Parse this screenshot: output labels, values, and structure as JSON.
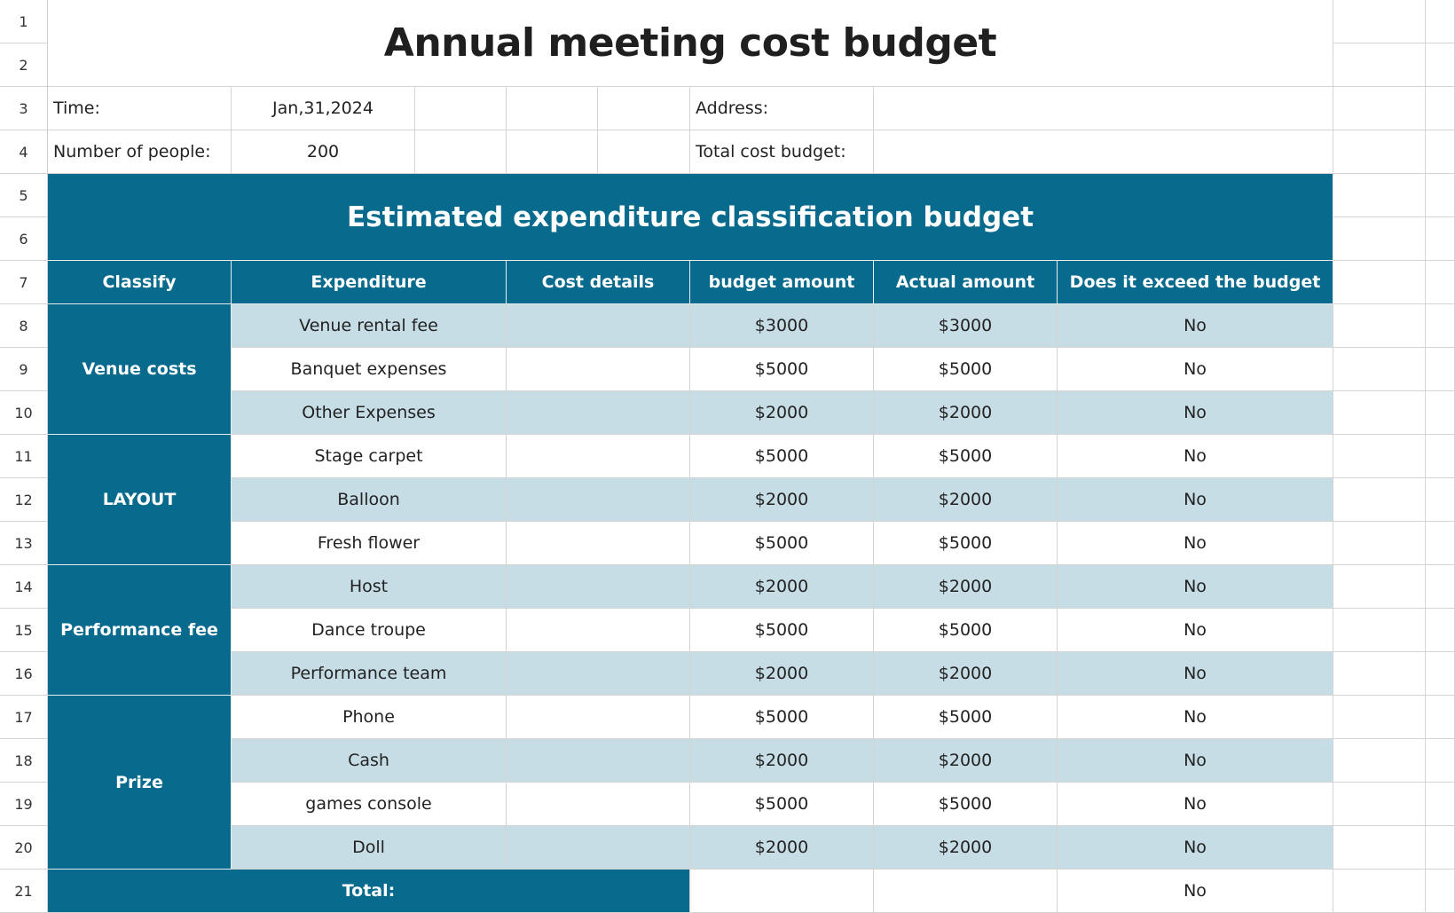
{
  "title": "Annual meeting cost budget",
  "row_numbers": [
    "1",
    "2",
    "3",
    "4",
    "5",
    "6",
    "7",
    "8",
    "9",
    "10",
    "11",
    "12",
    "13",
    "14",
    "15",
    "16",
    "17",
    "18",
    "19",
    "20",
    "21"
  ],
  "info": {
    "time_label": "Time:",
    "time_value": "Jan,31,2024",
    "address_label": "Address:",
    "people_label": "Number of people:",
    "people_value": "200",
    "total_budget_label": "Total cost budget:"
  },
  "section_title": "Estimated expenditure classification budget",
  "headers": [
    "Classify",
    "Expenditure",
    "Cost details",
    "budget amount",
    "Actual amount",
    "Does it exceed the budget"
  ],
  "categories": [
    {
      "name": "Venue costs",
      "rows": [
        {
          "expenditure": "Venue rental fee",
          "details": "",
          "budget": "$3000",
          "actual": "$3000",
          "exceed": "No"
        },
        {
          "expenditure": "Banquet expenses",
          "details": "",
          "budget": "$5000",
          "actual": "$5000",
          "exceed": "No"
        },
        {
          "expenditure": "Other Expenses",
          "details": "",
          "budget": "$2000",
          "actual": "$2000",
          "exceed": "No"
        }
      ]
    },
    {
      "name": "LAYOUT",
      "rows": [
        {
          "expenditure": "Stage carpet",
          "details": "",
          "budget": "$5000",
          "actual": "$5000",
          "exceed": "No"
        },
        {
          "expenditure": "Balloon",
          "details": "",
          "budget": "$2000",
          "actual": "$2000",
          "exceed": "No"
        },
        {
          "expenditure": "Fresh flower",
          "details": "",
          "budget": "$5000",
          "actual": "$5000",
          "exceed": "No"
        }
      ]
    },
    {
      "name": "Performance fee",
      "rows": [
        {
          "expenditure": "Host",
          "details": "",
          "budget": "$2000",
          "actual": "$2000",
          "exceed": "No"
        },
        {
          "expenditure": "Dance troupe",
          "details": "",
          "budget": "$5000",
          "actual": "$5000",
          "exceed": "No"
        },
        {
          "expenditure": "Performance team",
          "details": "",
          "budget": "$2000",
          "actual": "$2000",
          "exceed": "No"
        }
      ]
    },
    {
      "name": "Prize",
      "rows": [
        {
          "expenditure": "Phone",
          "details": "",
          "budget": "$5000",
          "actual": "$5000",
          "exceed": "No"
        },
        {
          "expenditure": "Cash",
          "details": "",
          "budget": "$2000",
          "actual": "$2000",
          "exceed": "No"
        },
        {
          "expenditure": "games console",
          "details": "",
          "budget": "$5000",
          "actual": "$5000",
          "exceed": "No"
        },
        {
          "expenditure": "Doll",
          "details": "",
          "budget": "$2000",
          "actual": "$2000",
          "exceed": "No"
        }
      ]
    }
  ],
  "total_row": {
    "label": "Total:",
    "budget": "",
    "actual": "",
    "exceed": "No"
  },
  "colors": {
    "accent": "#086a8c",
    "shade": "#c7dde6",
    "grid": "#d4d4d4"
  }
}
